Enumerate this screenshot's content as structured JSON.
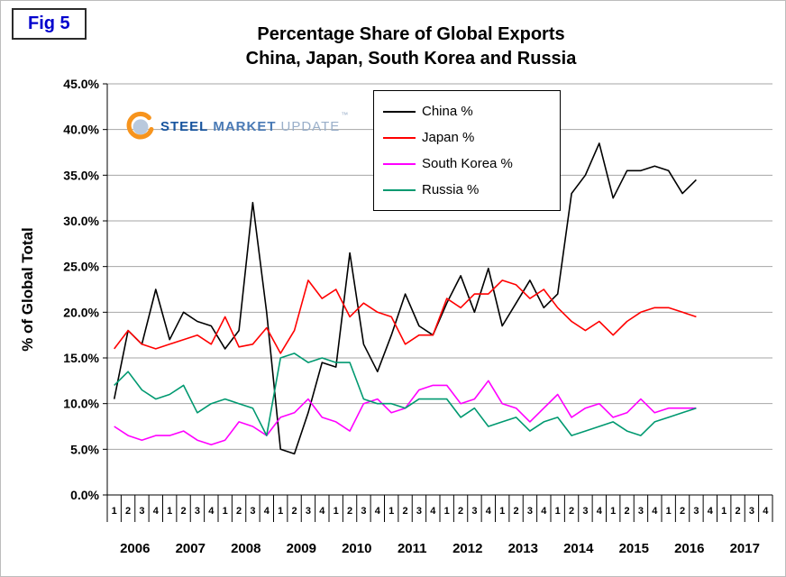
{
  "header": {
    "fig_label": "Fig 5",
    "title_line1": "Percentage Share of Global Exports",
    "title_line2": "China, Japan, South Korea and Russia"
  },
  "logo": {
    "word1": "STEEL",
    "word2": "MARKET",
    "word3": "UPDATE",
    "tm": "™",
    "accent_orange": "#f7941d",
    "accent_blue": "#17549e"
  },
  "chart_data": {
    "type": "line",
    "title": "Percentage Share of Global Exports - China, Japan, South Korea and Russia",
    "xlabel": "",
    "ylabel": "% of Global Total",
    "ylim": [
      0,
      45
    ],
    "grid": true,
    "legend_position": "top-center-inside",
    "ytick_values": [
      0,
      5,
      10,
      15,
      20,
      25,
      30,
      35,
      40,
      45
    ],
    "ytick_labels": [
      "0.0%",
      "5.0%",
      "10.0%",
      "15.0%",
      "20.0%",
      "25.0%",
      "30.0%",
      "35.0%",
      "40.0%",
      "45.0%"
    ],
    "years": [
      "2006",
      "2007",
      "2008",
      "2009",
      "2010",
      "2011",
      "2012",
      "2013",
      "2014",
      "2015",
      "2016",
      "2017"
    ],
    "quarter_labels": [
      "1",
      "2",
      "3",
      "4"
    ],
    "series": [
      {
        "id": "china",
        "name": "China %",
        "color": "#000000",
        "values": [
          10.5,
          18.0,
          16.5,
          22.5,
          17.0,
          20.0,
          19.0,
          18.5,
          16.0,
          18.0,
          32.0,
          20.0,
          5.0,
          4.5,
          9.0,
          14.5,
          14.0,
          26.5,
          16.5,
          13.5,
          17.5,
          22.0,
          18.5,
          17.5,
          21.0,
          24.0,
          20.0,
          24.8,
          18.5,
          21.0,
          23.5,
          20.5,
          22.0,
          33.0,
          35.0,
          38.5,
          32.5,
          35.5,
          35.5,
          36.0,
          35.5,
          33.0,
          34.5
        ]
      },
      {
        "id": "japan",
        "name": "Japan %",
        "color": "#ff0000",
        "values": [
          16.0,
          18.0,
          16.5,
          16.0,
          16.5,
          17.0,
          17.5,
          16.5,
          19.5,
          16.2,
          16.5,
          18.3,
          15.5,
          18.0,
          23.5,
          21.5,
          22.5,
          19.5,
          21.0,
          20.0,
          19.5,
          16.5,
          17.5,
          17.5,
          21.5,
          20.5,
          22.0,
          22.0,
          23.5,
          23.0,
          21.5,
          22.5,
          20.5,
          19.0,
          18.0,
          19.0,
          17.5,
          19.0,
          20.0,
          20.5,
          20.5,
          20.0,
          19.5
        ]
      },
      {
        "id": "south-korea",
        "name": "South Korea %",
        "color": "#ff00ff",
        "values": [
          7.5,
          6.5,
          6.0,
          6.5,
          6.5,
          7.0,
          6.0,
          5.5,
          6.0,
          8.0,
          7.5,
          6.5,
          8.5,
          9.0,
          10.5,
          8.5,
          8.0,
          7.0,
          10.0,
          10.5,
          9.0,
          9.5,
          11.5,
          12.0,
          12.0,
          10.0,
          10.5,
          12.5,
          10.0,
          9.5,
          8.0,
          9.5,
          11.0,
          8.5,
          9.5,
          10.0,
          8.5,
          9.0,
          10.5,
          9.0,
          9.5,
          9.5,
          9.5
        ]
      },
      {
        "id": "russia",
        "name": "Russia %",
        "color": "#009970",
        "values": [
          12.0,
          13.5,
          11.5,
          10.5,
          11.0,
          12.0,
          9.0,
          10.0,
          10.5,
          10.0,
          9.5,
          6.5,
          15.0,
          15.5,
          14.5,
          15.0,
          14.5,
          14.5,
          10.5,
          10.0,
          10.0,
          9.5,
          10.5,
          10.5,
          10.5,
          8.5,
          9.5,
          7.5,
          8.0,
          8.5,
          7.0,
          8.0,
          8.5,
          6.5,
          7.0,
          7.5,
          8.0,
          7.0,
          6.5,
          8.0,
          8.5,
          9.0,
          9.5
        ]
      }
    ]
  }
}
